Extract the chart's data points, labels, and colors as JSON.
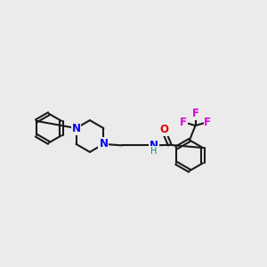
{
  "background_color": "#ebebeb",
  "bond_color": "#1a1a1a",
  "N_color": "#0000ee",
  "O_color": "#dd0000",
  "F_color": "#dd00dd",
  "NH_color": "#008888",
  "line_width": 1.5,
  "figsize": [
    3.0,
    3.0
  ],
  "dpi": 100,
  "xlim": [
    0,
    10
  ],
  "ylim": [
    2,
    8
  ]
}
